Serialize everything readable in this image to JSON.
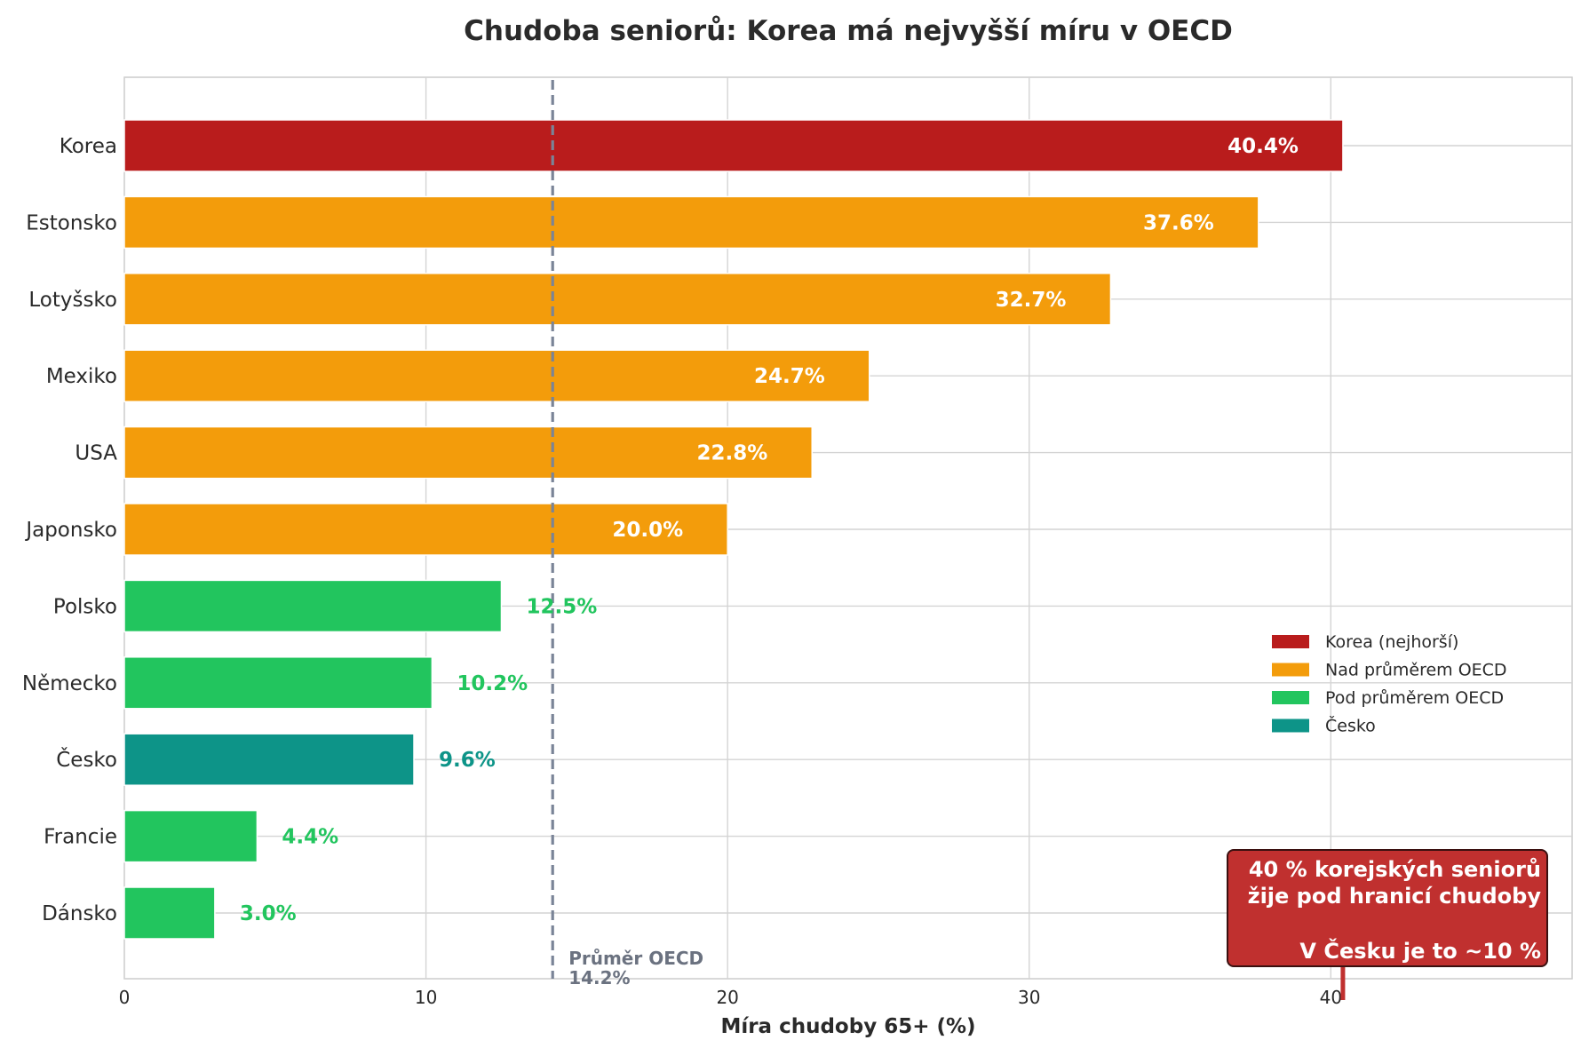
{
  "chart_data": {
    "type": "bar",
    "orientation": "horizontal",
    "title": "Chudoba seniorů: Korea má nejvyšší míru v OECD",
    "xlabel": "Míra chudoby 65+ (%)",
    "ylabel": "",
    "xlim": [
      0,
      48
    ],
    "xticks": [
      0,
      10,
      20,
      30,
      40
    ],
    "grid": true,
    "categories": [
      "Korea",
      "Estonsko",
      "Lotyšsko",
      "Mexiko",
      "USA",
      "Japonsko",
      "Polsko",
      "Německo",
      "Česko",
      "Francie",
      "Dánsko"
    ],
    "values": [
      40.4,
      37.6,
      32.7,
      24.7,
      22.8,
      20.0,
      12.5,
      10.2,
      9.6,
      4.4,
      3.0
    ],
    "value_labels": [
      "40.4%",
      "37.6%",
      "32.7%",
      "24.7%",
      "22.8%",
      "20.0%",
      "12.5%",
      "10.2%",
      "9.6%",
      "4.4%",
      "3.0%"
    ],
    "groups": [
      "korea",
      "above",
      "above",
      "above",
      "above",
      "above",
      "below",
      "below",
      "czech",
      "below",
      "below"
    ],
    "colors": {
      "korea": "#b91c1c",
      "above": "#f39c0b",
      "below": "#22c55e",
      "czech": "#0d9488",
      "avg_line": "#7a8497",
      "annotation_bg": "#c0302f"
    },
    "oecd_average": {
      "value": 14.2,
      "label_line1": "Průměr OECD",
      "label_line2": "14.2%"
    },
    "legend": {
      "placement": "center-right",
      "entries": [
        {
          "label": "Korea (nejhorší)",
          "group": "korea"
        },
        {
          "label": "Nad průměrem OECD",
          "group": "above"
        },
        {
          "label": "Pod průměrem OECD",
          "group": "below"
        },
        {
          "label": "Česko",
          "group": "czech"
        }
      ]
    },
    "annotation": {
      "line1": "40 % korejských seniorů",
      "line2": "žije pod hranicí chudoby",
      "line3": "V Česku je to ~10 %",
      "points_to": 40.4
    }
  }
}
